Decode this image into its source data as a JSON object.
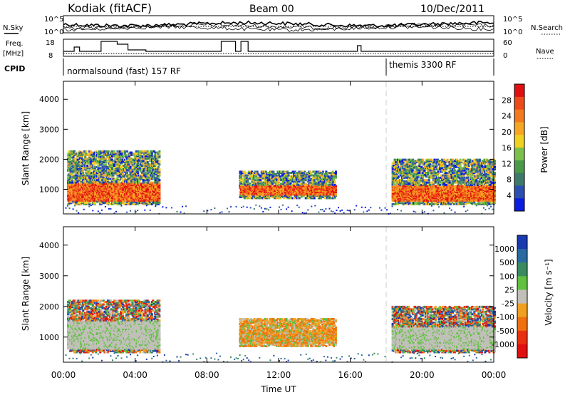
{
  "header": {
    "station": "Kodiak (fitACF)",
    "beam": "Beam 00",
    "date": "10/Dec/2011"
  },
  "left_labels": {
    "nsky": "N.Sky",
    "freq_top": "Freq.",
    "freq_unit": "[MHz]",
    "cpid": "CPID"
  },
  "right_labels": {
    "nsearch": "N.Search",
    "nave": "Nave"
  },
  "panels": {
    "noise_ticks_left": [
      "10^5",
      "10^0"
    ],
    "noise_ticks_right": [
      "10^5",
      "10^0"
    ],
    "freq_ticks_left": [
      "18",
      "8"
    ],
    "freq_ticks_right": [
      "60",
      "0"
    ],
    "cpid_segments": [
      {
        "label": "normalsound (fast) 157 RF",
        "start_hour": 0
      },
      {
        "label": "themis 3300 RF",
        "start_hour": 18.1
      }
    ]
  },
  "xaxis": {
    "label": "Time UT",
    "ticks": [
      "00:00",
      "04:00",
      "08:00",
      "12:00",
      "16:00",
      "20:00",
      "00:00"
    ]
  },
  "chart_data": [
    {
      "type": "heatmap",
      "title": "",
      "xlabel": "Time UT",
      "ylabel": "Slant Range [km]",
      "xlim": [
        0,
        24
      ],
      "ylim": [
        180,
        4600
      ],
      "yticks": [
        "1000",
        "2000",
        "3000",
        "4000"
      ],
      "colorbar": {
        "label": "Power [dB]",
        "ticks": [
          "4",
          "8",
          "12",
          "16",
          "20",
          "24",
          "28"
        ],
        "colors": [
          "#0a1de0",
          "#2a4fb0",
          "#3d7a6a",
          "#4a9a4a",
          "#7ac04a",
          "#f0d020",
          "#f6a623",
          "#f47a1e",
          "#ee4a1a",
          "#e01010"
        ]
      },
      "echo_regions": [
        {
          "t0": 0.2,
          "t1": 5.3,
          "r0": 500,
          "r1": 2300,
          "core_r0": 600,
          "core_r1": 1200
        },
        {
          "t0": 9.8,
          "t1": 15.2,
          "r0": 700,
          "r1": 1600,
          "core_r0": 800,
          "core_r1": 1100
        },
        {
          "t0": 18.3,
          "t1": 24.0,
          "r0": 500,
          "r1": 2000,
          "core_r0": 600,
          "core_r1": 1100
        }
      ]
    },
    {
      "type": "heatmap",
      "title": "",
      "xlabel": "Time UT",
      "ylabel": "Slant Range [km]",
      "xlim": [
        0,
        24
      ],
      "ylim": [
        180,
        4600
      ],
      "yticks": [
        "1000",
        "2000",
        "3000",
        "4000"
      ],
      "colorbar": {
        "label": "Velocity [m s⁻¹]",
        "ticks": [
          "1000",
          "500",
          "100",
          "25",
          "-25",
          "-100",
          "-500",
          "-1000"
        ],
        "colors": [
          "#1a3ab0",
          "#2a6aa0",
          "#3a8a60",
          "#60c040",
          "#c0c0b8",
          "#f0a020",
          "#f07010",
          "#e83010",
          "#e01010"
        ]
      },
      "echo_regions": [
        {
          "t0": 0.2,
          "t1": 5.3,
          "r0": 500,
          "r1": 2200,
          "core_r0": 600,
          "core_r1": 1500
        },
        {
          "t0": 9.8,
          "t1": 15.2,
          "r0": 700,
          "r1": 1600,
          "core_r0": 800,
          "core_r1": 1200
        },
        {
          "t0": 18.3,
          "t1": 24.0,
          "r0": 500,
          "r1": 2000,
          "core_r0": 600,
          "core_r1": 1300
        }
      ]
    }
  ]
}
